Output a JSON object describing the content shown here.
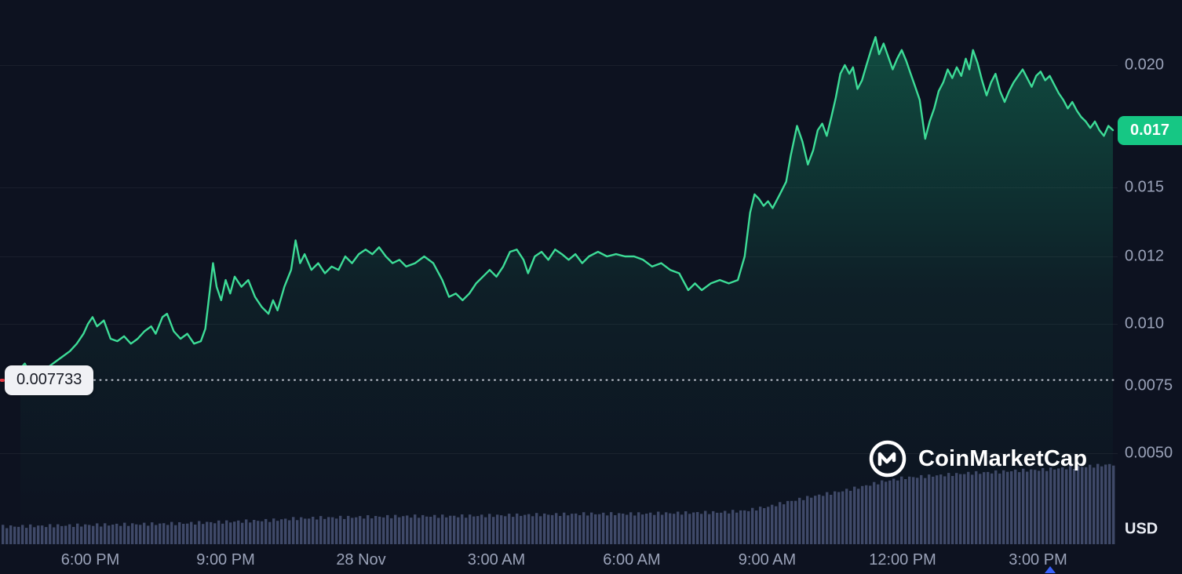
{
  "chart_data": {
    "type": "line",
    "unit_label": "USD",
    "current_price_label": "0.017",
    "current_price": 0.017,
    "reference": {
      "label": "0.007733",
      "value": 0.007733
    },
    "x_ticks": [
      {
        "t": 2,
        "label": "6:00 PM"
      },
      {
        "t": 5,
        "label": "9:00 PM"
      },
      {
        "t": 8,
        "label": "28 Nov"
      },
      {
        "t": 11,
        "label": "3:00 AM"
      },
      {
        "t": 14,
        "label": "6:00 AM"
      },
      {
        "t": 17,
        "label": "9:00 AM"
      },
      {
        "t": 20,
        "label": "12:00 PM"
      },
      {
        "t": 23,
        "label": "3:00 PM"
      }
    ],
    "y_ticks": [
      {
        "value": 0.02,
        "label": "0.020",
        "grid": true
      },
      {
        "value": 0.015,
        "label": "0.015",
        "grid": true
      },
      {
        "value": 0.012,
        "label": "0.012",
        "grid": true
      },
      {
        "value": 0.01,
        "label": "0.010",
        "grid": true
      },
      {
        "value": 0.0075,
        "label": "0.0075",
        "grid": false
      },
      {
        "value": 0.005,
        "label": "0.0050",
        "grid": true
      }
    ],
    "series": [
      {
        "name": "Price (USD)",
        "color": "#3ddc97",
        "points": [
          [
            0.45,
            0.0082
          ],
          [
            0.55,
            0.0084
          ],
          [
            0.7,
            0.0079
          ],
          [
            0.85,
            0.0081
          ],
          [
            1.0,
            0.008
          ],
          [
            1.1,
            0.0083
          ],
          [
            1.25,
            0.0085
          ],
          [
            1.4,
            0.0087
          ],
          [
            1.55,
            0.0089
          ],
          [
            1.7,
            0.0092
          ],
          [
            1.85,
            0.0096
          ],
          [
            1.95,
            0.01
          ],
          [
            2.05,
            0.0102
          ],
          [
            2.15,
            0.0099
          ],
          [
            2.3,
            0.0101
          ],
          [
            2.45,
            0.0094
          ],
          [
            2.6,
            0.0093
          ],
          [
            2.75,
            0.0095
          ],
          [
            2.9,
            0.0092
          ],
          [
            3.05,
            0.0094
          ],
          [
            3.2,
            0.0097
          ],
          [
            3.35,
            0.0099
          ],
          [
            3.45,
            0.0096
          ],
          [
            3.6,
            0.0102
          ],
          [
            3.7,
            0.0103
          ],
          [
            3.85,
            0.0097
          ],
          [
            4.0,
            0.0094
          ],
          [
            4.15,
            0.0096
          ],
          [
            4.3,
            0.0092
          ],
          [
            4.45,
            0.0093
          ],
          [
            4.55,
            0.0098
          ],
          [
            4.65,
            0.011
          ],
          [
            4.72,
            0.0118
          ],
          [
            4.8,
            0.0111
          ],
          [
            4.9,
            0.0107
          ],
          [
            5.0,
            0.0113
          ],
          [
            5.1,
            0.0109
          ],
          [
            5.2,
            0.0114
          ],
          [
            5.35,
            0.0111
          ],
          [
            5.5,
            0.0113
          ],
          [
            5.65,
            0.0108
          ],
          [
            5.8,
            0.0105
          ],
          [
            5.95,
            0.0103
          ],
          [
            6.05,
            0.0107
          ],
          [
            6.15,
            0.0104
          ],
          [
            6.3,
            0.0111
          ],
          [
            6.45,
            0.0116
          ],
          [
            6.55,
            0.0127
          ],
          [
            6.65,
            0.0118
          ],
          [
            6.75,
            0.0121
          ],
          [
            6.9,
            0.0116
          ],
          [
            7.05,
            0.0118
          ],
          [
            7.2,
            0.0115
          ],
          [
            7.35,
            0.0117
          ],
          [
            7.5,
            0.0116
          ],
          [
            7.65,
            0.012
          ],
          [
            7.8,
            0.0118
          ],
          [
            7.95,
            0.0121
          ],
          [
            8.1,
            0.0123
          ],
          [
            8.25,
            0.0121
          ],
          [
            8.4,
            0.0124
          ],
          [
            8.55,
            0.012
          ],
          [
            8.7,
            0.0118
          ],
          [
            8.85,
            0.0119
          ],
          [
            9.0,
            0.0117
          ],
          [
            9.2,
            0.0118
          ],
          [
            9.4,
            0.012
          ],
          [
            9.6,
            0.0118
          ],
          [
            9.8,
            0.0113
          ],
          [
            9.95,
            0.0108
          ],
          [
            10.1,
            0.0109
          ],
          [
            10.25,
            0.0107
          ],
          [
            10.4,
            0.0109
          ],
          [
            10.55,
            0.0112
          ],
          [
            10.7,
            0.0114
          ],
          [
            10.85,
            0.0116
          ],
          [
            11.0,
            0.0114
          ],
          [
            11.15,
            0.0117
          ],
          [
            11.3,
            0.0122
          ],
          [
            11.45,
            0.0123
          ],
          [
            11.6,
            0.0119
          ],
          [
            11.7,
            0.0115
          ],
          [
            11.85,
            0.012
          ],
          [
            12.0,
            0.0122
          ],
          [
            12.15,
            0.0119
          ],
          [
            12.3,
            0.0123
          ],
          [
            12.45,
            0.0121
          ],
          [
            12.6,
            0.0119
          ],
          [
            12.75,
            0.0121
          ],
          [
            12.9,
            0.0118
          ],
          [
            13.05,
            0.012
          ],
          [
            13.25,
            0.0122
          ],
          [
            13.45,
            0.012
          ],
          [
            13.65,
            0.0121
          ],
          [
            13.85,
            0.012
          ],
          [
            14.05,
            0.012
          ],
          [
            14.25,
            0.0119
          ],
          [
            14.45,
            0.0117
          ],
          [
            14.65,
            0.0118
          ],
          [
            14.85,
            0.0116
          ],
          [
            15.05,
            0.0115
          ],
          [
            15.25,
            0.011
          ],
          [
            15.4,
            0.0112
          ],
          [
            15.55,
            0.011
          ],
          [
            15.75,
            0.0112
          ],
          [
            15.95,
            0.0113
          ],
          [
            16.15,
            0.0112
          ],
          [
            16.35,
            0.0113
          ],
          [
            16.5,
            0.012
          ],
          [
            16.62,
            0.0139
          ],
          [
            16.72,
            0.0147
          ],
          [
            16.82,
            0.0145
          ],
          [
            16.92,
            0.0142
          ],
          [
            17.02,
            0.0144
          ],
          [
            17.12,
            0.0141
          ],
          [
            17.28,
            0.0147
          ],
          [
            17.42,
            0.0152
          ],
          [
            17.52,
            0.0161
          ],
          [
            17.66,
            0.0172
          ],
          [
            17.78,
            0.0166
          ],
          [
            17.9,
            0.0158
          ],
          [
            18.02,
            0.0163
          ],
          [
            18.12,
            0.017
          ],
          [
            18.22,
            0.0173
          ],
          [
            18.32,
            0.0168
          ],
          [
            18.42,
            0.0176
          ],
          [
            18.52,
            0.0185
          ],
          [
            18.62,
            0.0196
          ],
          [
            18.72,
            0.02
          ],
          [
            18.82,
            0.0196
          ],
          [
            18.9,
            0.0199
          ],
          [
            19.0,
            0.0189
          ],
          [
            19.1,
            0.0193
          ],
          [
            19.2,
            0.02
          ],
          [
            19.3,
            0.0207
          ],
          [
            19.4,
            0.0213
          ],
          [
            19.48,
            0.0205
          ],
          [
            19.58,
            0.021
          ],
          [
            19.68,
            0.0204
          ],
          [
            19.78,
            0.0198
          ],
          [
            19.88,
            0.0203
          ],
          [
            19.98,
            0.0207
          ],
          [
            20.08,
            0.0202
          ],
          [
            20.18,
            0.0196
          ],
          [
            20.28,
            0.019
          ],
          [
            20.38,
            0.0184
          ],
          [
            20.5,
            0.0167
          ],
          [
            20.6,
            0.0174
          ],
          [
            20.7,
            0.018
          ],
          [
            20.8,
            0.0188
          ],
          [
            20.9,
            0.0192
          ],
          [
            21.0,
            0.0198
          ],
          [
            21.1,
            0.0194
          ],
          [
            21.2,
            0.0199
          ],
          [
            21.3,
            0.0195
          ],
          [
            21.4,
            0.0203
          ],
          [
            21.48,
            0.0198
          ],
          [
            21.56,
            0.0207
          ],
          [
            21.66,
            0.0201
          ],
          [
            21.76,
            0.0193
          ],
          [
            21.86,
            0.0186
          ],
          [
            21.96,
            0.0192
          ],
          [
            22.06,
            0.0196
          ],
          [
            22.16,
            0.0188
          ],
          [
            22.26,
            0.0183
          ],
          [
            22.36,
            0.0188
          ],
          [
            22.46,
            0.0192
          ],
          [
            22.56,
            0.0195
          ],
          [
            22.66,
            0.0198
          ],
          [
            22.76,
            0.0194
          ],
          [
            22.86,
            0.019
          ],
          [
            22.96,
            0.0195
          ],
          [
            23.06,
            0.0197
          ],
          [
            23.16,
            0.0193
          ],
          [
            23.26,
            0.0195
          ],
          [
            23.36,
            0.0191
          ],
          [
            23.46,
            0.0187
          ],
          [
            23.56,
            0.0184
          ],
          [
            23.66,
            0.018
          ],
          [
            23.76,
            0.0183
          ],
          [
            23.86,
            0.0179
          ],
          [
            23.96,
            0.0176
          ],
          [
            24.06,
            0.0174
          ],
          [
            24.16,
            0.0171
          ],
          [
            24.26,
            0.0174
          ],
          [
            24.36,
            0.017
          ],
          [
            24.46,
            0.0168
          ],
          [
            24.56,
            0.0172
          ],
          [
            24.66,
            0.017
          ]
        ]
      }
    ],
    "volume_profile": {
      "color": "#3f4968",
      "points": [
        [
          0,
          0.22
        ],
        [
          1,
          0.23
        ],
        [
          2,
          0.24
        ],
        [
          3,
          0.25
        ],
        [
          4,
          0.26
        ],
        [
          5,
          0.28
        ],
        [
          6,
          0.3
        ],
        [
          6.5,
          0.32
        ],
        [
          7,
          0.33
        ],
        [
          8,
          0.34
        ],
        [
          9,
          0.35
        ],
        [
          10,
          0.35
        ],
        [
          11,
          0.36
        ],
        [
          12,
          0.37
        ],
        [
          13,
          0.38
        ],
        [
          14,
          0.38
        ],
        [
          15,
          0.39
        ],
        [
          16,
          0.4
        ],
        [
          16.5,
          0.42
        ],
        [
          17,
          0.47
        ],
        [
          17.5,
          0.54
        ],
        [
          18,
          0.6
        ],
        [
          18.5,
          0.65
        ],
        [
          19,
          0.71
        ],
        [
          19.5,
          0.78
        ],
        [
          20,
          0.83
        ],
        [
          20.5,
          0.85
        ],
        [
          21,
          0.87
        ],
        [
          21.5,
          0.89
        ],
        [
          22,
          0.9
        ],
        [
          22.5,
          0.92
        ],
        [
          23,
          0.93
        ],
        [
          23.5,
          0.95
        ],
        [
          24,
          0.97
        ],
        [
          24.66,
          1.0
        ]
      ]
    },
    "colors": {
      "background": "#0d1220",
      "line": "#3ddc97",
      "area_fill_top": "rgba(22,199,132,0.32)",
      "volume_bars": "#3f4968",
      "current_price_badge": "#16c784",
      "reference_line": "#d9dde8",
      "reference_tick_red": "#ea3943",
      "axis_text": "#9aa2b8",
      "watermark": "#ffffff",
      "time_marker_blue": "#3861fb"
    }
  },
  "watermark": {
    "text": "CoinMarketCap"
  }
}
